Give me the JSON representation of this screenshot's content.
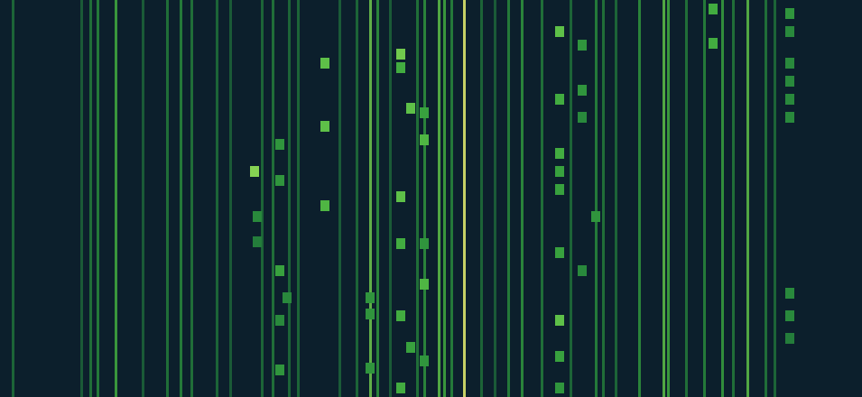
{
  "chart_data": {
    "type": "heatmap",
    "tick_labels": false,
    "grid": false,
    "xlim": [
      0,
      955
    ],
    "ylim": [
      0,
      440
    ],
    "color_range": [
      0,
      1
    ],
    "carriers": [
      {
        "x": 14,
        "intensity": 0.35
      },
      {
        "x": 90,
        "intensity": 0.3
      },
      {
        "x": 100,
        "intensity": 0.4
      },
      {
        "x": 108,
        "intensity": 0.45
      },
      {
        "x": 128,
        "intensity": 0.6
      },
      {
        "x": 158,
        "intensity": 0.3
      },
      {
        "x": 185,
        "intensity": 0.4
      },
      {
        "x": 200,
        "intensity": 0.45
      },
      {
        "x": 212,
        "intensity": 0.4
      },
      {
        "x": 240,
        "intensity": 0.35
      },
      {
        "x": 255,
        "intensity": 0.3
      },
      {
        "x": 290,
        "intensity": 0.35
      },
      {
        "x": 302,
        "intensity": 0.4
      },
      {
        "x": 320,
        "intensity": 0.35
      },
      {
        "x": 330,
        "intensity": 0.35
      },
      {
        "x": 376,
        "intensity": 0.3
      },
      {
        "x": 395,
        "intensity": 0.35
      },
      {
        "x": 410,
        "intensity": 0.75
      },
      {
        "x": 418,
        "intensity": 0.5
      },
      {
        "x": 432,
        "intensity": 0.3
      },
      {
        "x": 462,
        "intensity": 0.4
      },
      {
        "x": 470,
        "intensity": 0.5
      },
      {
        "x": 486,
        "intensity": 0.7
      },
      {
        "x": 492,
        "intensity": 0.6
      },
      {
        "x": 500,
        "intensity": 0.45
      },
      {
        "x": 514,
        "intensity": 1.0
      },
      {
        "x": 533,
        "intensity": 0.35
      },
      {
        "x": 548,
        "intensity": 0.3
      },
      {
        "x": 563,
        "intensity": 0.45
      },
      {
        "x": 578,
        "intensity": 0.5
      },
      {
        "x": 600,
        "intensity": 0.4
      },
      {
        "x": 632,
        "intensity": 0.35
      },
      {
        "x": 660,
        "intensity": 0.45
      },
      {
        "x": 668,
        "intensity": 0.4
      },
      {
        "x": 682,
        "intensity": 0.35
      },
      {
        "x": 708,
        "intensity": 0.5
      },
      {
        "x": 735,
        "intensity": 0.7
      },
      {
        "x": 740,
        "intensity": 0.6
      },
      {
        "x": 760,
        "intensity": 0.4
      },
      {
        "x": 780,
        "intensity": 0.45
      },
      {
        "x": 800,
        "intensity": 0.55
      },
      {
        "x": 812,
        "intensity": 0.4
      },
      {
        "x": 828,
        "intensity": 0.7
      },
      {
        "x": 848,
        "intensity": 0.4
      },
      {
        "x": 858,
        "intensity": 0.35
      }
    ],
    "cells": [
      {
        "x": 360,
        "y": 70,
        "intensity": 0.7
      },
      {
        "x": 360,
        "y": 140,
        "intensity": 0.7
      },
      {
        "x": 360,
        "y": 228,
        "intensity": 0.65
      },
      {
        "x": 444,
        "y": 60,
        "intensity": 0.75
      },
      {
        "x": 444,
        "y": 75,
        "intensity": 0.6
      },
      {
        "x": 455,
        "y": 120,
        "intensity": 0.7
      },
      {
        "x": 470,
        "y": 155,
        "intensity": 0.65
      },
      {
        "x": 444,
        "y": 218,
        "intensity": 0.7
      },
      {
        "x": 444,
        "y": 270,
        "intensity": 0.6
      },
      {
        "x": 470,
        "y": 315,
        "intensity": 0.65
      },
      {
        "x": 444,
        "y": 350,
        "intensity": 0.6
      },
      {
        "x": 455,
        "y": 385,
        "intensity": 0.55
      },
      {
        "x": 444,
        "y": 430,
        "intensity": 0.6
      },
      {
        "x": 470,
        "y": 125,
        "intensity": 0.55
      },
      {
        "x": 470,
        "y": 270,
        "intensity": 0.5
      },
      {
        "x": 470,
        "y": 400,
        "intensity": 0.5
      },
      {
        "x": 310,
        "y": 160,
        "intensity": 0.5
      },
      {
        "x": 310,
        "y": 200,
        "intensity": 0.5
      },
      {
        "x": 310,
        "y": 300,
        "intensity": 0.55
      },
      {
        "x": 318,
        "y": 330,
        "intensity": 0.45
      },
      {
        "x": 310,
        "y": 355,
        "intensity": 0.45
      },
      {
        "x": 310,
        "y": 410,
        "intensity": 0.5
      },
      {
        "x": 282,
        "y": 190,
        "intensity": 0.8
      },
      {
        "x": 285,
        "y": 240,
        "intensity": 0.45
      },
      {
        "x": 285,
        "y": 268,
        "intensity": 0.4
      },
      {
        "x": 620,
        "y": 35,
        "intensity": 0.7
      },
      {
        "x": 620,
        "y": 110,
        "intensity": 0.6
      },
      {
        "x": 620,
        "y": 170,
        "intensity": 0.6
      },
      {
        "x": 620,
        "y": 190,
        "intensity": 0.55
      },
      {
        "x": 620,
        "y": 210,
        "intensity": 0.55
      },
      {
        "x": 620,
        "y": 280,
        "intensity": 0.55
      },
      {
        "x": 620,
        "y": 355,
        "intensity": 0.7
      },
      {
        "x": 620,
        "y": 395,
        "intensity": 0.55
      },
      {
        "x": 620,
        "y": 430,
        "intensity": 0.5
      },
      {
        "x": 645,
        "y": 50,
        "intensity": 0.5
      },
      {
        "x": 645,
        "y": 100,
        "intensity": 0.5
      },
      {
        "x": 645,
        "y": 130,
        "intensity": 0.45
      },
      {
        "x": 660,
        "y": 240,
        "intensity": 0.5
      },
      {
        "x": 645,
        "y": 300,
        "intensity": 0.45
      },
      {
        "x": 790,
        "y": 10,
        "intensity": 0.6
      },
      {
        "x": 790,
        "y": 48,
        "intensity": 0.6
      },
      {
        "x": 875,
        "y": 15,
        "intensity": 0.5
      },
      {
        "x": 875,
        "y": 35,
        "intensity": 0.45
      },
      {
        "x": 875,
        "y": 70,
        "intensity": 0.45
      },
      {
        "x": 875,
        "y": 90,
        "intensity": 0.45
      },
      {
        "x": 875,
        "y": 110,
        "intensity": 0.45
      },
      {
        "x": 875,
        "y": 130,
        "intensity": 0.45
      },
      {
        "x": 875,
        "y": 325,
        "intensity": 0.45
      },
      {
        "x": 875,
        "y": 350,
        "intensity": 0.45
      },
      {
        "x": 875,
        "y": 375,
        "intensity": 0.4
      },
      {
        "x": 410,
        "y": 330,
        "intensity": 0.5
      },
      {
        "x": 410,
        "y": 348,
        "intensity": 0.5
      },
      {
        "x": 410,
        "y": 408,
        "intensity": 0.5
      }
    ]
  }
}
